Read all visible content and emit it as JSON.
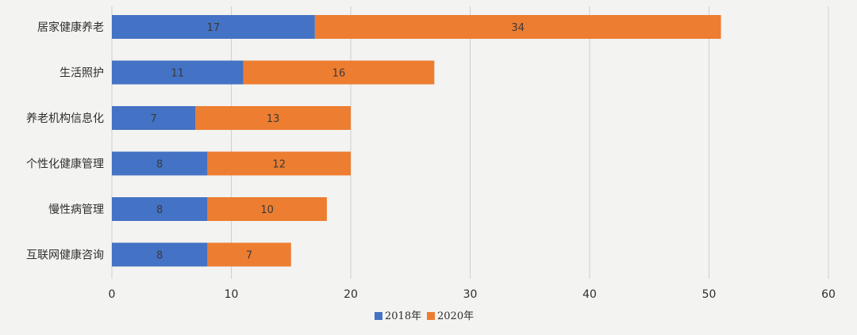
{
  "chart_data": {
    "type": "bar",
    "orientation": "horizontal",
    "stacked": true,
    "title": "",
    "xlabel": "",
    "ylabel": "",
    "xlim": [
      0,
      60
    ],
    "x_ticks": [
      "0",
      "10",
      "20",
      "30",
      "40",
      "50",
      "60"
    ],
    "grid": true,
    "legend_position": "bottom",
    "categories": [
      "居家健康养老",
      "生活照护",
      "养老机构信息化",
      "个性化健康管理",
      "慢性病管理",
      "互联网健康咨询"
    ],
    "series": [
      {
        "name": "2018年",
        "color": "#4472c4",
        "values": [
          17,
          11,
          7,
          8,
          8,
          8
        ]
      },
      {
        "name": "2020年",
        "color": "#ed7d31",
        "values": [
          34,
          16,
          13,
          12,
          10,
          7
        ]
      }
    ]
  }
}
